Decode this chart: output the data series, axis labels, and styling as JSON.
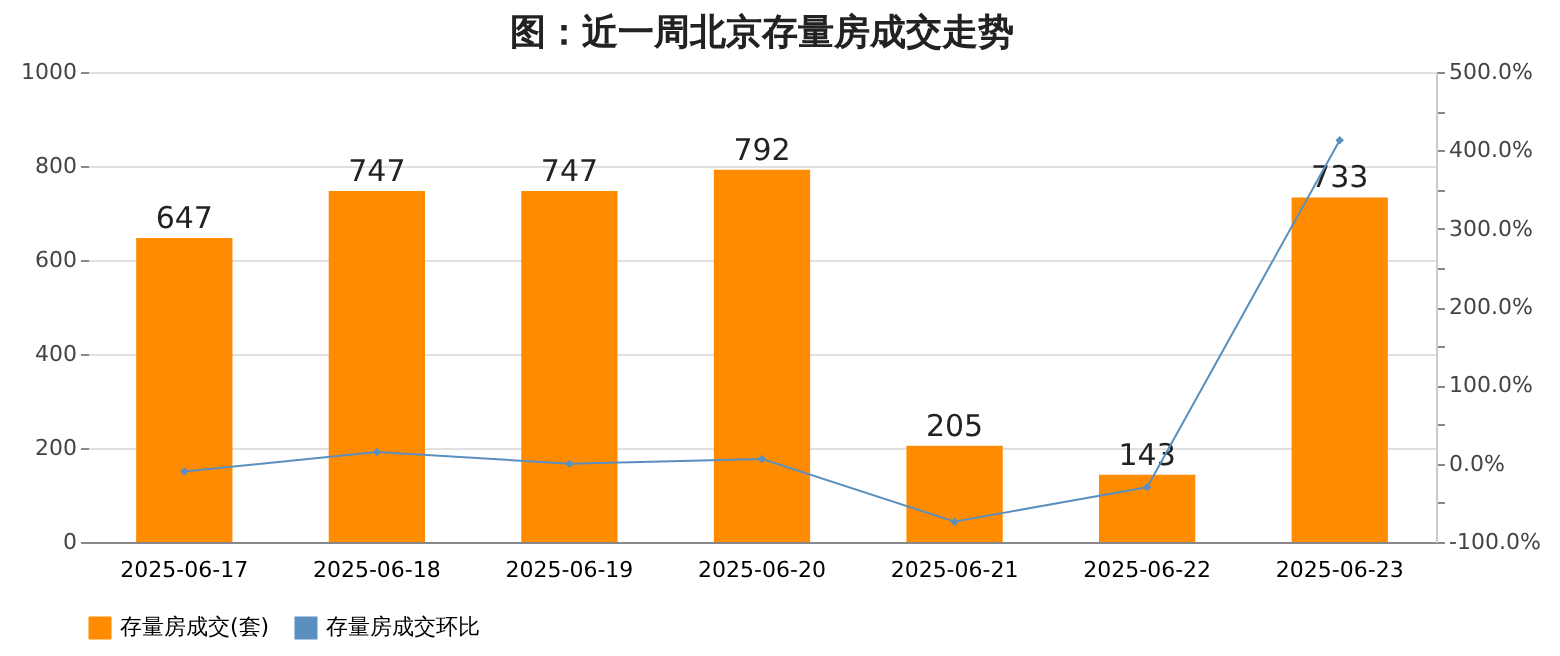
{
  "chart_data": {
    "type": "bar",
    "title": "图：近一周北京存量房成交走势",
    "categories": [
      "2025-06-17",
      "2025-06-18",
      "2025-06-19",
      "2025-06-20",
      "2025-06-21",
      "2025-06-22",
      "2025-06-23"
    ],
    "series": [
      {
        "name": "存量房成交(套)",
        "color": "#ff8c00",
        "values": [
          647,
          747,
          747,
          792,
          205,
          143,
          733
        ],
        "value_labels": [
          "647",
          "747",
          "747",
          "792",
          "205",
          "143",
          "733"
        ]
      },
      {
        "name": "存量房成交环比",
        "type": "line",
        "axis": "y2",
        "color": "#5b8fbf",
        "values": [
          -10,
          15,
          0,
          6,
          -74,
          -30,
          413
        ]
      }
    ],
    "ylim": [
      0,
      1000
    ],
    "yticks": [
      0,
      200,
      400,
      600,
      800,
      1000
    ],
    "y2lim": [
      -100,
      500
    ],
    "y2ticks": [
      {
        "value": -100,
        "label": "-100.0%"
      },
      {
        "value": -50,
        "label": null
      },
      {
        "value": 0,
        "label": "0.0%"
      },
      {
        "value": 50,
        "label": null
      },
      {
        "value": 100,
        "label": "100.0%"
      },
      {
        "value": 150,
        "label": null
      },
      {
        "value": 200,
        "label": "200.0%"
      },
      {
        "value": 250,
        "label": null
      },
      {
        "value": 300,
        "label": "300.0%"
      },
      {
        "value": 350,
        "label": null
      },
      {
        "value": 400,
        "label": "400.0%"
      },
      {
        "value": 450,
        "label": null
      },
      {
        "value": 500,
        "label": "500.0%"
      }
    ],
    "grid": "y",
    "legend": "bottom",
    "marker": "diamond",
    "line_style": "solid"
  }
}
